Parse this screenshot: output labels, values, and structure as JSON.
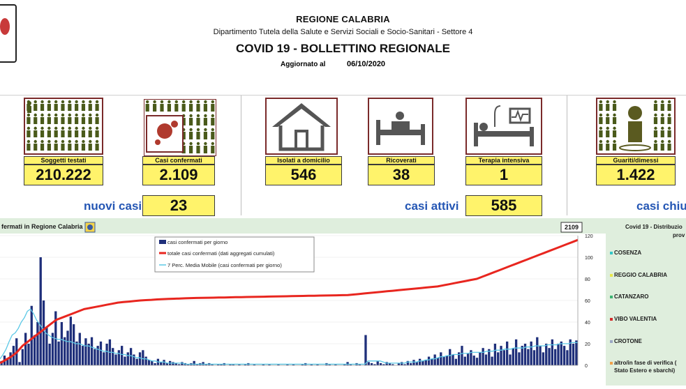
{
  "header": {
    "region": "REGIONE CALABRIA",
    "department": "Dipartimento Tutela della Salute e Servizi Sociali e Socio-Sanitari - Settore 4",
    "title": "COVID 19 - BOLLETTINO REGIONALE",
    "updated_label": "Aggiornato al",
    "updated_date": "06/10/2020"
  },
  "stats": [
    {
      "label": "Soggetti testati",
      "value": "210.222",
      "icon": "people-grid-icon"
    },
    {
      "label": "Casi confermati",
      "value": "2.109",
      "icon": "virus-people-icon"
    },
    {
      "label": "Isolati a domicilio",
      "value": "546",
      "icon": "house-icon"
    },
    {
      "label": "Ricoverati",
      "value": "38",
      "icon": "hospital-bed-icon"
    },
    {
      "label": "Terapia intensiva",
      "value": "1",
      "icon": "icu-bed-icon"
    },
    {
      "label": "Guariti/dimessi",
      "value": "1.422",
      "icon": "recovered-person-icon"
    }
  ],
  "summary": {
    "new_cases_label": "nuovi casi",
    "new_cases_value": "23",
    "active_label": "casi attivi",
    "active_value": "585",
    "closed_label": "casi chiusi"
  },
  "chart_title": "fermati in Regione Calabria",
  "right_panel": {
    "title": "Covid 19 - Distribuzio",
    "title2": "prov",
    "items": [
      {
        "name": "COSENZA",
        "color": "#33c7c7"
      },
      {
        "name": "REGGIO CALABRIA",
        "color": "#e8e84a"
      },
      {
        "name": "CATANZARO",
        "color": "#3cb371"
      },
      {
        "name": "VIBO VALENTIA",
        "color": "#d42a2a"
      },
      {
        "name": "CROTONE",
        "color": "#9aa7c4"
      },
      {
        "name": "altro/in fase di verifica (",
        "color": "#f0a04a"
      },
      {
        "name": "Stato Estero e sbarchi)",
        "color": ""
      }
    ]
  },
  "chart_data": {
    "type": "bar",
    "legend": [
      {
        "name": "casi confermati per giorno",
        "kind": "bar",
        "color": "#1f2f7a"
      },
      {
        "name": "totale casi confermati (dati aggregati cumulati)",
        "kind": "line",
        "color": "#e8261f"
      },
      {
        "name": "7 Perc. Media Mobile (casi confermati per giorno)",
        "kind": "line",
        "color": "#5bc8e6"
      }
    ],
    "ylim": [
      0,
      120
    ],
    "yticks": [
      "0",
      "20",
      "40",
      "60",
      "80",
      "100",
      "120"
    ],
    "last_total_label": "2109",
    "daily_cases": [
      4,
      9,
      6,
      12,
      18,
      25,
      3,
      15,
      30,
      20,
      55,
      28,
      40,
      100,
      60,
      35,
      20,
      30,
      50,
      22,
      40,
      26,
      32,
      45,
      38,
      22,
      30,
      18,
      25,
      20,
      26,
      15,
      18,
      22,
      12,
      20,
      24,
      16,
      10,
      14,
      18,
      8,
      12,
      16,
      10,
      6,
      12,
      14,
      8,
      5,
      4,
      2,
      6,
      3,
      5,
      2,
      4,
      3,
      2,
      1,
      3,
      2,
      1,
      2,
      4,
      1,
      2,
      3,
      1,
      2,
      1,
      0,
      1,
      1,
      2,
      0,
      1,
      1,
      0,
      1,
      0,
      1,
      2,
      0,
      1,
      0,
      0,
      1,
      0,
      1,
      0,
      0,
      1,
      0,
      0,
      1,
      0,
      1,
      0,
      0,
      1,
      2,
      0,
      1,
      0,
      1,
      0,
      0,
      2,
      1,
      0,
      1,
      0,
      0,
      1,
      3,
      1,
      0,
      2,
      1,
      0,
      28,
      3,
      2,
      1,
      4,
      2,
      1,
      3,
      2,
      1,
      0,
      2,
      3,
      1,
      4,
      2,
      5,
      3,
      6,
      4,
      5,
      8,
      6,
      10,
      7,
      12,
      8,
      9,
      15,
      10,
      6,
      12,
      18,
      8,
      11,
      14,
      9,
      7,
      12,
      16,
      10,
      15,
      8,
      20,
      12,
      18,
      14,
      22,
      10,
      16,
      24,
      12,
      18,
      20,
      15,
      22,
      14,
      26,
      18,
      12,
      20,
      16,
      24,
      15,
      20,
      22,
      18,
      14,
      24,
      20,
      23
    ],
    "moving_avg": [
      6,
      10,
      15,
      22,
      28,
      30,
      34,
      40,
      44,
      50,
      52,
      48,
      42,
      38,
      34,
      30,
      28,
      26,
      25,
      24,
      24,
      23,
      22,
      22,
      21,
      20,
      20,
      19,
      18,
      18,
      17,
      16,
      15,
      14,
      13,
      13,
      12,
      12,
      11,
      11,
      10,
      10,
      9,
      9,
      8,
      7,
      7,
      6,
      6,
      5,
      4,
      4,
      3,
      3,
      3,
      2,
      2,
      2,
      2,
      2,
      2,
      1,
      1,
      1,
      1,
      1,
      1,
      1,
      1,
      1,
      1,
      1,
      1,
      1,
      1,
      1,
      1,
      1,
      1,
      1,
      1,
      1,
      1,
      1,
      1,
      1,
      1,
      1,
      1,
      1,
      1,
      1,
      1,
      1,
      1,
      1,
      1,
      1,
      1,
      1,
      1,
      1,
      1,
      1,
      1,
      1,
      1,
      1,
      1,
      1,
      1,
      1,
      1,
      1,
      1,
      1,
      1,
      1,
      1,
      1,
      1,
      4,
      4,
      4,
      4,
      4,
      3,
      2,
      2,
      2,
      2,
      2,
      2,
      2,
      3,
      3,
      3,
      3,
      4,
      4,
      5,
      5,
      6,
      6,
      7,
      8,
      8,
      9,
      9,
      10,
      10,
      10,
      11,
      11,
      11,
      12,
      12,
      12,
      12,
      12,
      13,
      13,
      13,
      14,
      14,
      14,
      15,
      15,
      15,
      16,
      16,
      16,
      16,
      17,
      17,
      17,
      18,
      18,
      18,
      18,
      19,
      19,
      19,
      19,
      20,
      20,
      20,
      20,
      21,
      21,
      21
    ],
    "cumulative_line_units": [
      2,
      5,
      8,
      12,
      18,
      22,
      26,
      30,
      34,
      38,
      42,
      44,
      46,
      48,
      50,
      52,
      53,
      54,
      55,
      56,
      57,
      58,
      58.5,
      59,
      59.5,
      60,
      60.3,
      60.6,
      61,
      61.2,
      61.4,
      61.6,
      61.8,
      62,
      62.2,
      62.3,
      62.4,
      62.5,
      62.6,
      62.7,
      62.8,
      62.9,
      63,
      63.1,
      63.2,
      63.3,
      63.4,
      63.5,
      63.6,
      63.7,
      63.8,
      63.9,
      64,
      64.1,
      64.2,
      64.3,
      64.4,
      64.5,
      64.6,
      64.7,
      64.8,
      64.9,
      65,
      65.5,
      66,
      66.5,
      67,
      67.5,
      68,
      68.5,
      69,
      69.5,
      70,
      70.5,
      71,
      71.5,
      72,
      72.5,
      73,
      74,
      75,
      76,
      77,
      78,
      79,
      80,
      82,
      84,
      86,
      88,
      90,
      92,
      94,
      96,
      98,
      100,
      102,
      104,
      106,
      108,
      110,
      112,
      114,
      116
    ]
  }
}
